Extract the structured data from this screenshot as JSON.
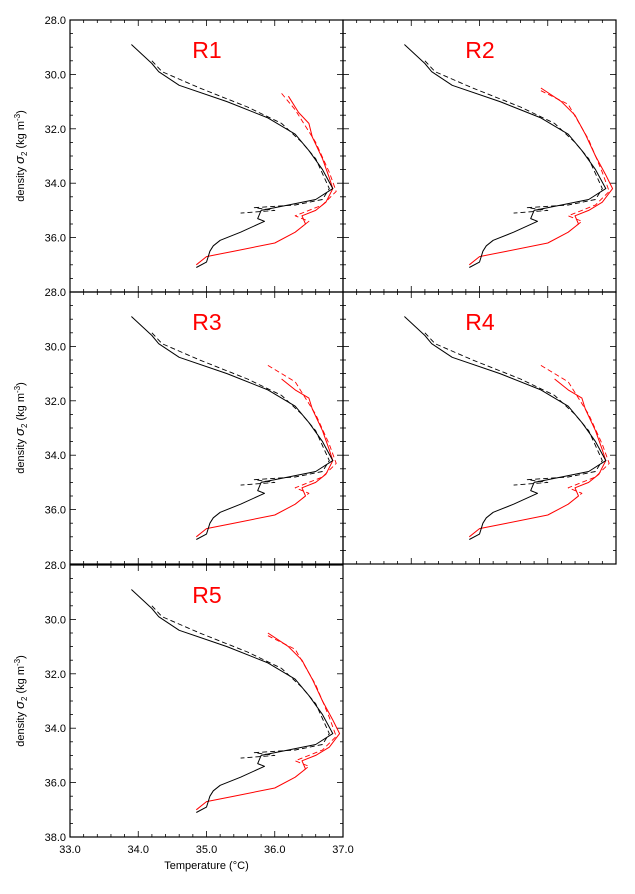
{
  "chart_data": {
    "type": "line",
    "title": "",
    "xlabel": "Temperature (°C)",
    "ylabel_prefix": "density ",
    "ylabel_symbol": "σ",
    "ylabel_sub": "2",
    "ylabel_unit_pre": " (kg m",
    "ylabel_unit_sup": "-3",
    "ylabel_unit_post": ")",
    "xlim": [
      33.0,
      37.0
    ],
    "ylim": [
      28.0,
      38.0
    ],
    "y_inverted": true,
    "x_ticks": [
      33.0,
      34.0,
      35.0,
      36.0,
      37.0
    ],
    "x_tick_labels": [
      "33.0",
      "34.0",
      "35.0",
      "36.0",
      "37.0"
    ],
    "y_ticks": [
      28.0,
      30.0,
      32.0,
      34.0,
      36.0,
      38.0
    ],
    "y_tick_labels": [
      "28.0",
      "30.0",
      "32.0",
      "34.0",
      "36.0",
      "38.0"
    ],
    "colors": {
      "black": "#000000",
      "red": "#ff0000",
      "label": "#ff0000"
    },
    "panels": [
      {
        "label": "R1",
        "black_solid": {
          "x": [
            33.9,
            34.2,
            34.3,
            34.6,
            35.3,
            35.9,
            36.3,
            36.5,
            36.7,
            36.85,
            36.6,
            36.2,
            35.8,
            35.75,
            35.85,
            35.5,
            35.2,
            35.1,
            35.05,
            35.0,
            34.85
          ],
          "y": [
            28.9,
            29.6,
            29.9,
            30.4,
            31.0,
            31.6,
            32.2,
            32.8,
            33.5,
            34.2,
            34.6,
            34.8,
            35.0,
            35.3,
            35.4,
            35.8,
            36.1,
            36.3,
            36.5,
            36.9,
            37.1
          ]
        },
        "black_dashed": {
          "x": [
            34.2,
            34.35,
            34.9,
            35.6,
            36.1,
            36.4,
            36.6,
            36.8,
            36.7,
            36.3,
            35.7,
            36.0,
            35.5
          ],
          "y": [
            29.5,
            29.9,
            30.5,
            31.2,
            31.8,
            32.5,
            33.1,
            34.2,
            34.6,
            34.8,
            34.9,
            35.0,
            35.1
          ]
        },
        "red_solid": {
          "x": [
            36.2,
            36.35,
            36.5,
            36.55,
            36.7,
            36.8,
            36.85,
            36.75,
            36.6,
            36.4,
            36.45,
            36.3,
            36.0,
            35.4,
            35.0,
            34.85
          ],
          "y": [
            30.8,
            31.4,
            31.8,
            32.3,
            33.1,
            33.8,
            34.2,
            34.7,
            35.0,
            35.2,
            35.5,
            35.8,
            36.2,
            36.5,
            36.7,
            37.0
          ]
        },
        "red_dashed": {
          "x": [
            36.1,
            36.3,
            36.6,
            36.8,
            36.9,
            36.7,
            36.3,
            36.5,
            36.4
          ],
          "y": [
            30.7,
            31.3,
            32.5,
            33.6,
            34.3,
            34.8,
            35.2,
            35.4,
            35.6
          ]
        }
      },
      {
        "label": "R2",
        "black_solid": {
          "x": [
            33.9,
            34.2,
            34.3,
            34.6,
            35.3,
            35.9,
            36.3,
            36.5,
            36.7,
            36.85,
            36.6,
            36.2,
            35.8,
            35.75,
            35.85,
            35.5,
            35.2,
            35.1,
            35.05,
            35.0,
            34.85
          ],
          "y": [
            28.9,
            29.6,
            29.9,
            30.4,
            31.0,
            31.6,
            32.2,
            32.8,
            33.5,
            34.2,
            34.6,
            34.8,
            35.0,
            35.3,
            35.4,
            35.8,
            36.1,
            36.3,
            36.5,
            36.9,
            37.1
          ]
        },
        "black_dashed": {
          "x": [
            34.2,
            34.35,
            34.9,
            35.6,
            36.1,
            36.4,
            36.6,
            36.8,
            36.7,
            36.3,
            35.7,
            36.0,
            35.5
          ],
          "y": [
            29.5,
            29.9,
            30.5,
            31.2,
            31.8,
            32.5,
            33.1,
            34.2,
            34.6,
            34.8,
            34.9,
            35.0,
            35.1
          ]
        },
        "red_solid": {
          "x": [
            35.9,
            36.2,
            36.4,
            36.55,
            36.7,
            36.85,
            36.95,
            36.8,
            36.6,
            36.4,
            36.45,
            36.3,
            36.0,
            35.4,
            35.0,
            34.85
          ],
          "y": [
            30.5,
            31.0,
            31.5,
            32.2,
            33.0,
            33.7,
            34.2,
            34.7,
            35.0,
            35.2,
            35.5,
            35.8,
            36.2,
            36.5,
            36.7,
            37.0
          ]
        },
        "red_dashed": {
          "x": [
            35.9,
            36.3,
            36.6,
            36.8,
            36.9,
            36.7,
            36.3,
            36.5,
            36.4
          ],
          "y": [
            30.6,
            31.1,
            32.4,
            33.6,
            34.3,
            34.8,
            35.2,
            35.4,
            35.6
          ]
        }
      },
      {
        "label": "R3",
        "black_solid": {
          "x": [
            33.9,
            34.2,
            34.3,
            34.6,
            35.3,
            35.9,
            36.3,
            36.5,
            36.7,
            36.85,
            36.6,
            36.2,
            35.8,
            35.75,
            35.85,
            35.5,
            35.2,
            35.1,
            35.05,
            35.0,
            34.85
          ],
          "y": [
            28.9,
            29.6,
            29.9,
            30.4,
            31.0,
            31.6,
            32.2,
            32.8,
            33.5,
            34.2,
            34.6,
            34.8,
            35.0,
            35.3,
            35.4,
            35.8,
            36.1,
            36.3,
            36.5,
            36.9,
            37.1
          ]
        },
        "black_dashed": {
          "x": [
            34.2,
            34.35,
            34.9,
            35.6,
            36.1,
            36.4,
            36.6,
            36.8,
            36.7,
            36.3,
            35.7,
            36.0,
            35.5
          ],
          "y": [
            29.5,
            29.9,
            30.5,
            31.2,
            31.8,
            32.5,
            33.1,
            34.2,
            34.6,
            34.8,
            34.9,
            35.0,
            35.1
          ]
        },
        "red_solid": {
          "x": [
            36.1,
            36.3,
            36.5,
            36.55,
            36.7,
            36.8,
            36.85,
            36.75,
            36.6,
            36.4,
            36.45,
            36.3,
            36.0,
            35.4,
            35.0,
            34.85
          ],
          "y": [
            31.2,
            31.6,
            31.9,
            32.3,
            33.1,
            33.8,
            34.2,
            34.7,
            35.0,
            35.2,
            35.5,
            35.8,
            36.2,
            36.5,
            36.7,
            37.0
          ]
        },
        "red_dashed": {
          "x": [
            35.9,
            36.3,
            36.6,
            36.8,
            36.9,
            36.7,
            36.3,
            36.5,
            36.4
          ],
          "y": [
            30.7,
            31.3,
            32.5,
            33.6,
            34.3,
            34.8,
            35.2,
            35.4,
            35.6
          ]
        }
      },
      {
        "label": "R4",
        "black_solid": {
          "x": [
            33.9,
            34.2,
            34.3,
            34.6,
            35.3,
            35.9,
            36.3,
            36.5,
            36.7,
            36.85,
            36.6,
            36.2,
            35.8,
            35.75,
            35.85,
            35.5,
            35.2,
            35.1,
            35.05,
            35.0,
            34.85
          ],
          "y": [
            28.9,
            29.6,
            29.9,
            30.4,
            31.0,
            31.6,
            32.2,
            32.8,
            33.5,
            34.2,
            34.6,
            34.8,
            35.0,
            35.3,
            35.4,
            35.8,
            36.1,
            36.3,
            36.5,
            36.9,
            37.1
          ]
        },
        "black_dashed": {
          "x": [
            34.2,
            34.35,
            34.9,
            35.6,
            36.1,
            36.4,
            36.6,
            36.8,
            36.7,
            36.3,
            35.7,
            36.0,
            35.5
          ],
          "y": [
            29.5,
            29.9,
            30.5,
            31.2,
            31.8,
            32.5,
            33.1,
            34.2,
            34.6,
            34.8,
            34.9,
            35.0,
            35.1
          ]
        },
        "red_solid": {
          "x": [
            36.1,
            36.3,
            36.5,
            36.55,
            36.7,
            36.8,
            36.85,
            36.75,
            36.6,
            36.4,
            36.45,
            36.3,
            36.0,
            35.4,
            35.0,
            34.85
          ],
          "y": [
            31.2,
            31.6,
            31.9,
            32.3,
            33.1,
            33.8,
            34.2,
            34.7,
            35.0,
            35.2,
            35.5,
            35.8,
            36.2,
            36.5,
            36.7,
            37.0
          ]
        },
        "red_dashed": {
          "x": [
            35.9,
            36.3,
            36.6,
            36.8,
            36.9,
            36.7,
            36.3,
            36.5,
            36.4
          ],
          "y": [
            30.7,
            31.3,
            32.5,
            33.6,
            34.3,
            34.8,
            35.2,
            35.4,
            35.6
          ]
        }
      },
      {
        "label": "R5",
        "black_solid": {
          "x": [
            33.9,
            34.2,
            34.3,
            34.6,
            35.3,
            35.9,
            36.3,
            36.5,
            36.7,
            36.85,
            36.6,
            36.2,
            35.8,
            35.75,
            35.85,
            35.5,
            35.2,
            35.1,
            35.05,
            35.0,
            34.85
          ],
          "y": [
            28.9,
            29.6,
            29.9,
            30.4,
            31.0,
            31.6,
            32.2,
            32.8,
            33.5,
            34.2,
            34.6,
            34.8,
            35.0,
            35.3,
            35.4,
            35.8,
            36.1,
            36.3,
            36.5,
            36.9,
            37.1
          ]
        },
        "black_dashed": {
          "x": [
            34.2,
            34.35,
            34.9,
            35.6,
            36.1,
            36.4,
            36.6,
            36.8,
            36.7,
            36.3,
            35.7,
            36.0,
            35.5
          ],
          "y": [
            29.5,
            29.9,
            30.5,
            31.2,
            31.8,
            32.5,
            33.1,
            34.2,
            34.6,
            34.8,
            34.9,
            35.0,
            35.1
          ]
        },
        "red_solid": {
          "x": [
            35.9,
            36.2,
            36.4,
            36.55,
            36.7,
            36.85,
            36.95,
            36.8,
            36.6,
            36.4,
            36.45,
            36.3,
            36.0,
            35.4,
            35.0,
            34.85
          ],
          "y": [
            30.5,
            31.0,
            31.5,
            32.2,
            33.0,
            33.7,
            34.2,
            34.7,
            35.0,
            35.2,
            35.5,
            35.8,
            36.2,
            36.5,
            36.7,
            37.0
          ]
        },
        "red_dashed": {
          "x": [
            35.9,
            36.3,
            36.6,
            36.8,
            36.9,
            36.7,
            36.3,
            36.5,
            36.4
          ],
          "y": [
            30.6,
            31.1,
            32.4,
            33.6,
            34.3,
            34.8,
            35.2,
            35.4,
            35.6
          ]
        }
      }
    ]
  }
}
